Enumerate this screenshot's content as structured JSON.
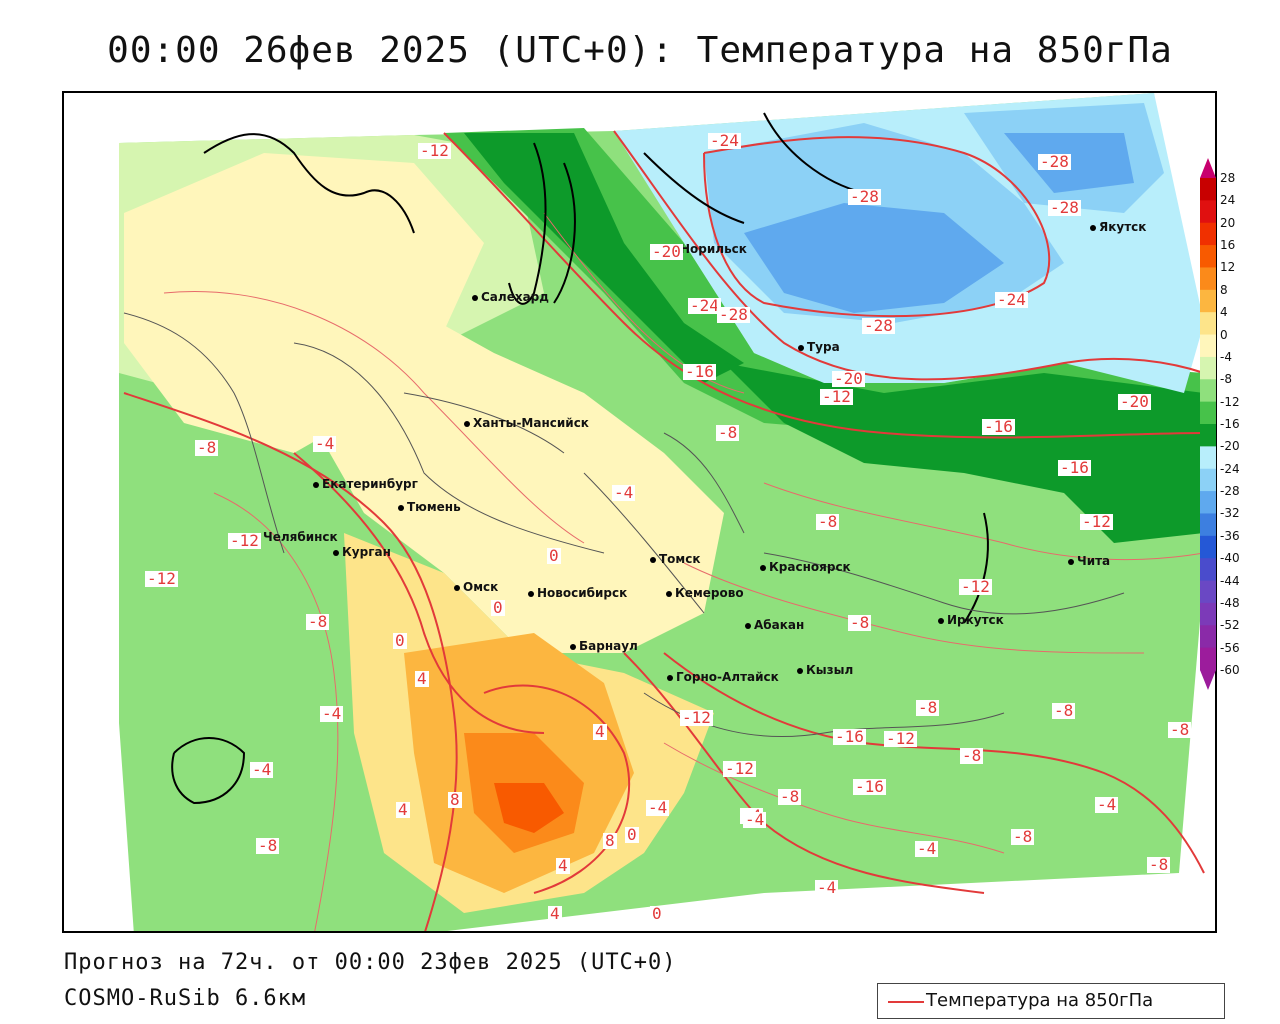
{
  "title": "00:00 26фев 2025 (UTC+0): Температура на 850гПа",
  "footer": {
    "line1": "Прогноз на 72ч. от 00:00 23фев 2025 (UTC+0)",
    "line2": "COSMO-RuSib 6.6км"
  },
  "legend": {
    "label": "Температура на 850гПа",
    "line_color": "#e23a3a"
  },
  "colorbar": {
    "ticks": [
      "28",
      "24",
      "20",
      "16",
      "12",
      "8",
      "4",
      "0",
      "-4",
      "-8",
      "-12",
      "-16",
      "-20",
      "-24",
      "-28",
      "-32",
      "-36",
      "-40",
      "-44",
      "-48",
      "-52",
      "-56",
      "-60"
    ],
    "colors": [
      "#c8006e",
      "#c80000",
      "#e01010",
      "#f03000",
      "#f85a00",
      "#fb8a1a",
      "#fcb640",
      "#fde48a",
      "#fff6bb",
      "#d6f5b0",
      "#8fe07d",
      "#47c24a",
      "#0d9a2a",
      "#b8eefb",
      "#8cd1f6",
      "#5fa9ee",
      "#3d7fe0",
      "#2558d6",
      "#4a4ccc",
      "#6a48c4",
      "#7c3ab8",
      "#8a2aa8",
      "#9c1c9c"
    ]
  },
  "cities": [
    {
      "name": "Норильск"
    },
    {
      "name": "Якутск"
    },
    {
      "name": "Салехард"
    },
    {
      "name": "Тура"
    },
    {
      "name": "Ханты-Мансийск"
    },
    {
      "name": "Екатеринбург"
    },
    {
      "name": "Тюмень"
    },
    {
      "name": "Челябинск"
    },
    {
      "name": "Курган"
    },
    {
      "name": "Омск"
    },
    {
      "name": "Томск"
    },
    {
      "name": "Красноярск"
    },
    {
      "name": "Новосибирск"
    },
    {
      "name": "Кемерово"
    },
    {
      "name": "Барнаул"
    },
    {
      "name": "Абакан"
    },
    {
      "name": "Горно-Алтайск"
    },
    {
      "name": "Кызыл"
    },
    {
      "name": "Иркутск"
    },
    {
      "name": "Чита"
    }
  ],
  "contour_labels": [
    "-12",
    "-24",
    "-28",
    "-28",
    "-28",
    "-20",
    "-24",
    "-24",
    "-28",
    "-28",
    "-16",
    "-20",
    "-12",
    "-20",
    "-8",
    "-8",
    "-4",
    "-4",
    "-16",
    "-16",
    "-8",
    "-12",
    "-12",
    "-12",
    "-8",
    "0",
    "0",
    "0",
    "-8",
    "4",
    "-4",
    "-12",
    "4",
    "-4",
    "8",
    "4",
    "-8",
    "8",
    "4",
    "-4",
    "0",
    "-4",
    "-12",
    "-12",
    "-8",
    "-16",
    "-12",
    "-16",
    "-8",
    "-8",
    "-8",
    "-8",
    "-4",
    "-4",
    "-8",
    "-8",
    "-4",
    "0",
    "4",
    "-4"
  ]
}
